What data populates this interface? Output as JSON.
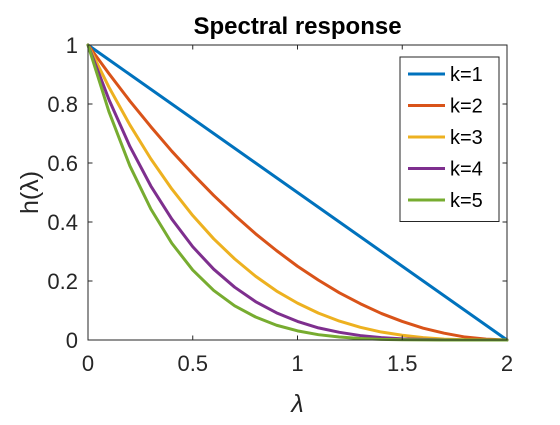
{
  "chart_data": {
    "type": "line",
    "title": "Spectral response",
    "xlabel": "λ",
    "ylabel": "h(λ)",
    "xlim": [
      0,
      2
    ],
    "ylim": [
      0,
      1
    ],
    "x_ticks": [
      0,
      0.5,
      1,
      1.5,
      2
    ],
    "x_tick_labels": [
      "0",
      "0.5",
      "1",
      "1.5",
      "2"
    ],
    "y_ticks": [
      0,
      0.2,
      0.4,
      0.6,
      0.8,
      1
    ],
    "y_tick_labels": [
      "0",
      "0.2",
      "0.4",
      "0.6",
      "0.8",
      "1"
    ],
    "grid": false,
    "legend_position": "top-right",
    "x": [
      0,
      0.1,
      0.2,
      0.3,
      0.4,
      0.5,
      0.6,
      0.7,
      0.8,
      0.9,
      1.0,
      1.1,
      1.2,
      1.3,
      1.4,
      1.5,
      1.6,
      1.7,
      1.8,
      1.9,
      2.0
    ],
    "series": [
      {
        "name": "k=1",
        "color": "#0072BD",
        "values": [
          1,
          0.95,
          0.9,
          0.85,
          0.8,
          0.75,
          0.7,
          0.65,
          0.6,
          0.55,
          0.5,
          0.45,
          0.4,
          0.35,
          0.3,
          0.25,
          0.2,
          0.15,
          0.1,
          0.05,
          0
        ]
      },
      {
        "name": "k=2",
        "color": "#D95319",
        "values": [
          1,
          0.903,
          0.81,
          0.723,
          0.64,
          0.563,
          0.49,
          0.423,
          0.36,
          0.303,
          0.25,
          0.203,
          0.16,
          0.123,
          0.09,
          0.063,
          0.04,
          0.023,
          0.01,
          0.003,
          0
        ]
      },
      {
        "name": "k=3",
        "color": "#EDB120",
        "values": [
          1,
          0.857,
          0.729,
          0.614,
          0.512,
          0.422,
          0.343,
          0.275,
          0.216,
          0.166,
          0.125,
          0.091,
          0.064,
          0.043,
          0.027,
          0.016,
          0.008,
          0.003,
          0.001,
          0.0001,
          0
        ]
      },
      {
        "name": "k=4",
        "color": "#7E2F8E",
        "values": [
          1,
          0.815,
          0.656,
          0.522,
          0.41,
          0.316,
          0.24,
          0.179,
          0.13,
          0.092,
          0.063,
          0.041,
          0.026,
          0.015,
          0.008,
          0.004,
          0.002,
          0.0005,
          0.0001,
          0,
          0
        ]
      },
      {
        "name": "k=5",
        "color": "#77AC30",
        "values": [
          1,
          0.774,
          0.59,
          0.444,
          0.328,
          0.237,
          0.168,
          0.116,
          0.078,
          0.05,
          0.031,
          0.018,
          0.01,
          0.005,
          0.002,
          0.001,
          0.0003,
          0.0001,
          0,
          0,
          0
        ]
      }
    ]
  }
}
